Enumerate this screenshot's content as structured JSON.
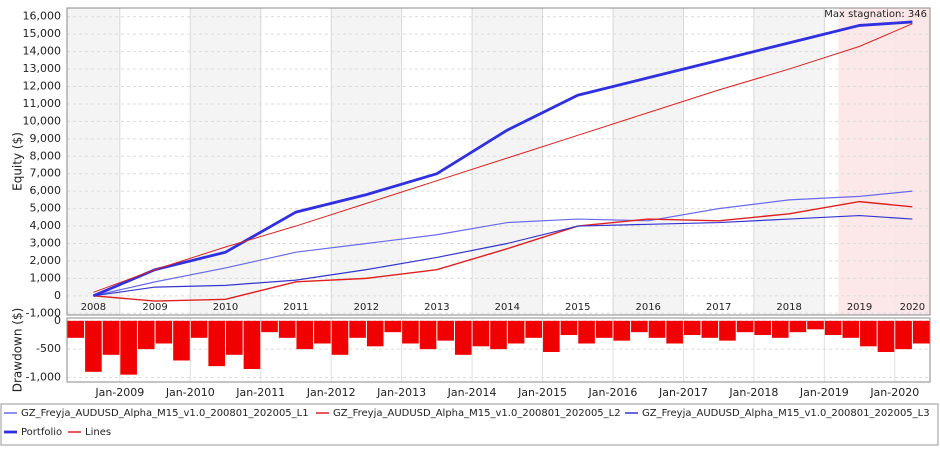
{
  "chart_data": [
    {
      "type": "line",
      "y_label": "Equity ($)",
      "annotation": "Max stagnation: 346",
      "stagnation_from": "2019",
      "categories": [
        "2008",
        "2009",
        "2010",
        "2011",
        "2012",
        "2013",
        "2014",
        "2015",
        "2016",
        "2017",
        "2018",
        "2019",
        "2020"
      ],
      "ylim": [
        -1100,
        16500
      ],
      "yticks": [
        {
          "value": -1000,
          "label": "-1,000"
        },
        0,
        {
          "value": 1000,
          "label": "1,000"
        },
        {
          "value": 2000,
          "label": "2,000"
        },
        {
          "value": 3000,
          "label": "3,000"
        },
        {
          "value": 4000,
          "label": "4,000"
        },
        {
          "value": 5000,
          "label": "5,000"
        },
        {
          "value": 6000,
          "label": "6,000"
        },
        {
          "value": 7000,
          "label": "7,000"
        },
        {
          "value": 8000,
          "label": "8,000"
        },
        {
          "value": 9000,
          "label": "9,000"
        },
        {
          "value": 10000,
          "label": "10,000"
        },
        {
          "value": 11000,
          "label": "11,000"
        },
        {
          "value": 12000,
          "label": "12,000"
        },
        {
          "value": 13000,
          "label": "13,000"
        },
        {
          "value": 14000,
          "label": "14,000"
        },
        {
          "value": 15000,
          "label": "15,000"
        },
        {
          "value": 16000,
          "label": "16,000"
        }
      ],
      "grid": true,
      "series": [
        {
          "name": "GZ_Freyja_AUDUSD_Alpha_M15_v1.0_200801_202005_L1",
          "color": "#6a6af0",
          "width": 1.2,
          "values": [
            0,
            800,
            1600,
            2500,
            3000,
            3500,
            4200,
            4400,
            4300,
            5000,
            5500,
            5700,
            6000
          ]
        },
        {
          "name": "GZ_Freyja_AUDUSD_Alpha_M15_v1.0_200801_202005_L2",
          "color": "#e02020",
          "width": 1.4,
          "values": [
            0,
            -300,
            -200,
            800,
            1000,
            1500,
            2700,
            4000,
            4400,
            4300,
            4700,
            5400,
            5100
          ]
        },
        {
          "name": "GZ_Freyja_AUDUSD_Alpha_M15_v1.0_200801_202005_L3",
          "color": "#3535d0",
          "width": 1.2,
          "values": [
            0,
            500,
            600,
            900,
            1500,
            2200,
            3000,
            4000,
            4100,
            4200,
            4400,
            4600,
            4400
          ]
        },
        {
          "name": "Portfolio",
          "color": "#3030e0",
          "width": 2.8,
          "values": [
            0,
            1500,
            2500,
            4800,
            5800,
            7000,
            9500,
            11500,
            12500,
            13500,
            14500,
            15500,
            15700
          ]
        },
        {
          "name": "Lines",
          "color": "#e02020",
          "width": 1,
          "values": [
            200,
            1500,
            2800,
            4000,
            5300,
            6600,
            7900,
            9200,
            10500,
            11800,
            13000,
            14300,
            15600
          ]
        }
      ]
    },
    {
      "type": "bar",
      "y_label": "Drawdown ($)",
      "color": "#f00000",
      "categories": [
        null,
        null,
        null,
        "Jan-2009",
        null,
        null,
        null,
        "Jan-2010",
        null,
        null,
        null,
        "Jan-2011",
        null,
        null,
        null,
        "Jan-2012",
        null,
        null,
        null,
        "Jan-2013",
        null,
        null,
        null,
        "Jan-2014",
        null,
        null,
        null,
        "Jan-2015",
        null,
        null,
        null,
        "Jan-2016",
        null,
        null,
        null,
        "Jan-2017",
        null,
        null,
        null,
        "Jan-2018",
        null,
        null,
        null,
        "Jan-2019",
        null,
        null,
        null,
        "Jan-2020",
        null
      ],
      "values": [
        -300,
        -900,
        -600,
        -950,
        -500,
        -400,
        -700,
        -300,
        -800,
        -600,
        -850,
        -200,
        -300,
        -500,
        -400,
        -600,
        -300,
        -450,
        -200,
        -400,
        -500,
        -350,
        -600,
        -450,
        -500,
        -400,
        -300,
        -550,
        -250,
        -400,
        -300,
        -350,
        -200,
        -300,
        -400,
        -250,
        -300,
        -350,
        -200,
        -250,
        -300,
        -200,
        -150,
        -250,
        -300,
        -450,
        -550,
        -500,
        -400
      ],
      "ylim": [
        -1080,
        50
      ],
      "yticks": [
        {
          "value": -1000,
          "label": "-1,000"
        },
        -500,
        0
      ],
      "grid": true
    }
  ]
}
